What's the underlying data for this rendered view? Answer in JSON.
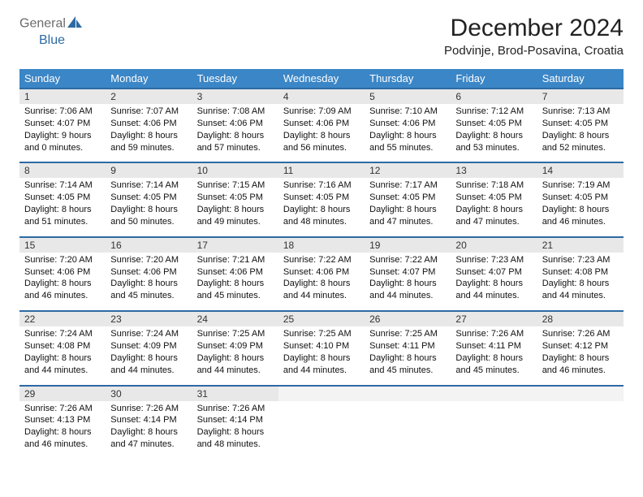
{
  "colors": {
    "header_bg": "#3b86c6",
    "header_text": "#ffffff",
    "daynum_bg": "#e8e8e8",
    "daynum_border": "#2d6aa3",
    "logo_gray": "#6b6b6b",
    "logo_blue": "#2d6aa3",
    "empty_cell": "#f3f3f3"
  },
  "logo": {
    "part1": "General",
    "part2": "Blue"
  },
  "title": "December 2024",
  "location": "Podvinje, Brod-Posavina, Croatia",
  "day_headers": [
    "Sunday",
    "Monday",
    "Tuesday",
    "Wednesday",
    "Thursday",
    "Friday",
    "Saturday"
  ],
  "weeks": [
    [
      {
        "num": "1",
        "sunrise": "Sunrise: 7:06 AM",
        "sunset": "Sunset: 4:07 PM",
        "daylight": "Daylight: 9 hours and 0 minutes."
      },
      {
        "num": "2",
        "sunrise": "Sunrise: 7:07 AM",
        "sunset": "Sunset: 4:06 PM",
        "daylight": "Daylight: 8 hours and 59 minutes."
      },
      {
        "num": "3",
        "sunrise": "Sunrise: 7:08 AM",
        "sunset": "Sunset: 4:06 PM",
        "daylight": "Daylight: 8 hours and 57 minutes."
      },
      {
        "num": "4",
        "sunrise": "Sunrise: 7:09 AM",
        "sunset": "Sunset: 4:06 PM",
        "daylight": "Daylight: 8 hours and 56 minutes."
      },
      {
        "num": "5",
        "sunrise": "Sunrise: 7:10 AM",
        "sunset": "Sunset: 4:06 PM",
        "daylight": "Daylight: 8 hours and 55 minutes."
      },
      {
        "num": "6",
        "sunrise": "Sunrise: 7:12 AM",
        "sunset": "Sunset: 4:05 PM",
        "daylight": "Daylight: 8 hours and 53 minutes."
      },
      {
        "num": "7",
        "sunrise": "Sunrise: 7:13 AM",
        "sunset": "Sunset: 4:05 PM",
        "daylight": "Daylight: 8 hours and 52 minutes."
      }
    ],
    [
      {
        "num": "8",
        "sunrise": "Sunrise: 7:14 AM",
        "sunset": "Sunset: 4:05 PM",
        "daylight": "Daylight: 8 hours and 51 minutes."
      },
      {
        "num": "9",
        "sunrise": "Sunrise: 7:14 AM",
        "sunset": "Sunset: 4:05 PM",
        "daylight": "Daylight: 8 hours and 50 minutes."
      },
      {
        "num": "10",
        "sunrise": "Sunrise: 7:15 AM",
        "sunset": "Sunset: 4:05 PM",
        "daylight": "Daylight: 8 hours and 49 minutes."
      },
      {
        "num": "11",
        "sunrise": "Sunrise: 7:16 AM",
        "sunset": "Sunset: 4:05 PM",
        "daylight": "Daylight: 8 hours and 48 minutes."
      },
      {
        "num": "12",
        "sunrise": "Sunrise: 7:17 AM",
        "sunset": "Sunset: 4:05 PM",
        "daylight": "Daylight: 8 hours and 47 minutes."
      },
      {
        "num": "13",
        "sunrise": "Sunrise: 7:18 AM",
        "sunset": "Sunset: 4:05 PM",
        "daylight": "Daylight: 8 hours and 47 minutes."
      },
      {
        "num": "14",
        "sunrise": "Sunrise: 7:19 AM",
        "sunset": "Sunset: 4:05 PM",
        "daylight": "Daylight: 8 hours and 46 minutes."
      }
    ],
    [
      {
        "num": "15",
        "sunrise": "Sunrise: 7:20 AM",
        "sunset": "Sunset: 4:06 PM",
        "daylight": "Daylight: 8 hours and 46 minutes."
      },
      {
        "num": "16",
        "sunrise": "Sunrise: 7:20 AM",
        "sunset": "Sunset: 4:06 PM",
        "daylight": "Daylight: 8 hours and 45 minutes."
      },
      {
        "num": "17",
        "sunrise": "Sunrise: 7:21 AM",
        "sunset": "Sunset: 4:06 PM",
        "daylight": "Daylight: 8 hours and 45 minutes."
      },
      {
        "num": "18",
        "sunrise": "Sunrise: 7:22 AM",
        "sunset": "Sunset: 4:06 PM",
        "daylight": "Daylight: 8 hours and 44 minutes."
      },
      {
        "num": "19",
        "sunrise": "Sunrise: 7:22 AM",
        "sunset": "Sunset: 4:07 PM",
        "daylight": "Daylight: 8 hours and 44 minutes."
      },
      {
        "num": "20",
        "sunrise": "Sunrise: 7:23 AM",
        "sunset": "Sunset: 4:07 PM",
        "daylight": "Daylight: 8 hours and 44 minutes."
      },
      {
        "num": "21",
        "sunrise": "Sunrise: 7:23 AM",
        "sunset": "Sunset: 4:08 PM",
        "daylight": "Daylight: 8 hours and 44 minutes."
      }
    ],
    [
      {
        "num": "22",
        "sunrise": "Sunrise: 7:24 AM",
        "sunset": "Sunset: 4:08 PM",
        "daylight": "Daylight: 8 hours and 44 minutes."
      },
      {
        "num": "23",
        "sunrise": "Sunrise: 7:24 AM",
        "sunset": "Sunset: 4:09 PM",
        "daylight": "Daylight: 8 hours and 44 minutes."
      },
      {
        "num": "24",
        "sunrise": "Sunrise: 7:25 AM",
        "sunset": "Sunset: 4:09 PM",
        "daylight": "Daylight: 8 hours and 44 minutes."
      },
      {
        "num": "25",
        "sunrise": "Sunrise: 7:25 AM",
        "sunset": "Sunset: 4:10 PM",
        "daylight": "Daylight: 8 hours and 44 minutes."
      },
      {
        "num": "26",
        "sunrise": "Sunrise: 7:25 AM",
        "sunset": "Sunset: 4:11 PM",
        "daylight": "Daylight: 8 hours and 45 minutes."
      },
      {
        "num": "27",
        "sunrise": "Sunrise: 7:26 AM",
        "sunset": "Sunset: 4:11 PM",
        "daylight": "Daylight: 8 hours and 45 minutes."
      },
      {
        "num": "28",
        "sunrise": "Sunrise: 7:26 AM",
        "sunset": "Sunset: 4:12 PM",
        "daylight": "Daylight: 8 hours and 46 minutes."
      }
    ],
    [
      {
        "num": "29",
        "sunrise": "Sunrise: 7:26 AM",
        "sunset": "Sunset: 4:13 PM",
        "daylight": "Daylight: 8 hours and 46 minutes."
      },
      {
        "num": "30",
        "sunrise": "Sunrise: 7:26 AM",
        "sunset": "Sunset: 4:14 PM",
        "daylight": "Daylight: 8 hours and 47 minutes."
      },
      {
        "num": "31",
        "sunrise": "Sunrise: 7:26 AM",
        "sunset": "Sunset: 4:14 PM",
        "daylight": "Daylight: 8 hours and 48 minutes."
      },
      null,
      null,
      null,
      null
    ]
  ]
}
